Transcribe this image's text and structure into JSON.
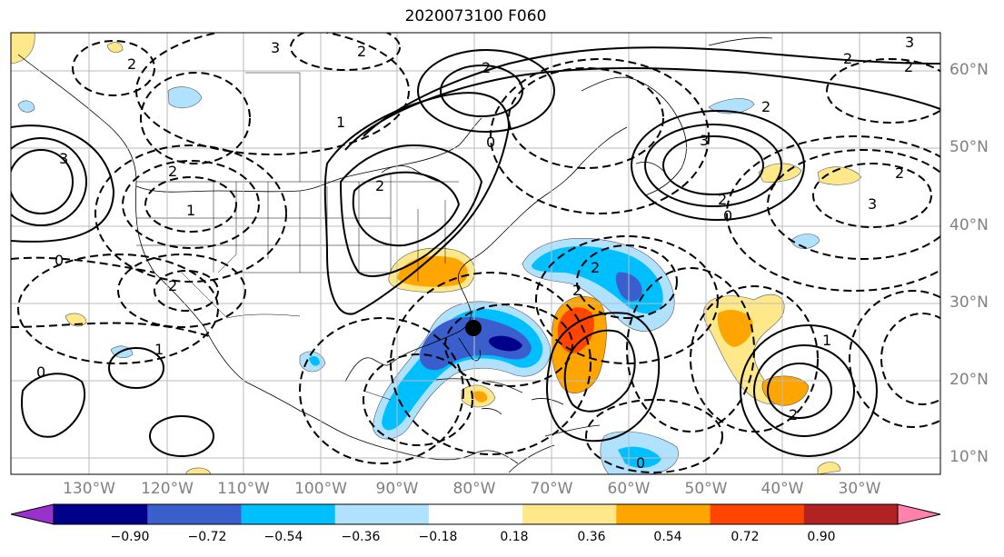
{
  "title": "2020073100 F060",
  "latitude_labels": [
    "60°N",
    "50°N",
    "40°N",
    "30°N",
    "20°N",
    "10°N"
  ],
  "longitude_labels": [
    "130°W",
    "120°W",
    "110°W",
    "100°W",
    "90°W",
    "80°W",
    "70°W",
    "60°W",
    "50°W",
    "40°W",
    "30°W"
  ],
  "colorbar": {
    "ticks": [
      "−0.90",
      "−0.72",
      "−0.54",
      "−0.36",
      "−0.18",
      "0.18",
      "0.36",
      "0.54",
      "0.72",
      "0.90"
    ],
    "colors": [
      "#9932cc",
      "#00008b",
      "#3a5fcd",
      "#00bfff",
      "#b0e2ff",
      "#ffffff",
      "#ffe88a",
      "#ffa500",
      "#ff4500",
      "#b22222",
      "#ff82ab"
    ]
  },
  "contour_labels": [
    "3",
    "2",
    "2",
    "3",
    "2",
    "1",
    "0",
    "2",
    "3",
    "2",
    "2",
    "3",
    "2",
    "2",
    "0",
    "2",
    "2",
    "1",
    "0",
    "2",
    "3",
    "2",
    "2",
    "1",
    "0",
    "2",
    "1",
    "0"
  ],
  "marker": "storm-center"
}
